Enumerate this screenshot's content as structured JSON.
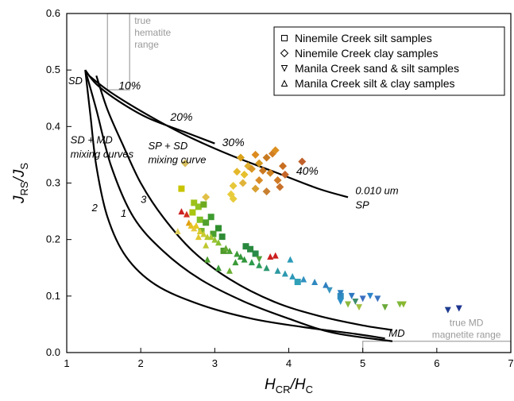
{
  "chart_data": {
    "type": "scatter",
    "xlim": [
      1,
      7
    ],
    "ylim": [
      0,
      0.6
    ],
    "x_ticks": [
      "1",
      "2",
      "3",
      "4",
      "5",
      "6",
      "7"
    ],
    "y_ticks": [
      "0.0",
      "0.1",
      "0.2",
      "0.3",
      "0.4",
      "0.5",
      "0.6"
    ],
    "xlabel": {
      "main": "H",
      "sub1": "CR",
      "slash": "/H",
      "sub2": "C"
    },
    "ylabel": {
      "main": "J",
      "sub1": "RS",
      "slash": "/J",
      "sub2": "S"
    },
    "grid": false,
    "legend_position": "top-right",
    "legend": [
      {
        "marker": "square",
        "label": "Ninemile Creek silt samples"
      },
      {
        "marker": "diamond",
        "label": "Ninemile Creek clay samples"
      },
      {
        "marker": "triangle-down",
        "label": "Manila Creek sand & silt samples"
      },
      {
        "marker": "triangle-up",
        "label": "Manila Creek silt & clay samples"
      }
    ],
    "reference_boxes": [
      {
        "name": "true hematite range",
        "text_lines": [
          "true",
          "hematite",
          "range"
        ],
        "x": [
          1.55,
          1.85
        ],
        "y": [
          0.465,
          0.6
        ]
      },
      {
        "name": "true MD magnetite range",
        "text_lines": [
          "true MD",
          "magnetite range"
        ],
        "x": [
          5.0,
          7.0
        ],
        "y": [
          0.0,
          0.02
        ]
      }
    ],
    "curves": [
      {
        "name": "SD + MD mixing curve 2",
        "label": "2",
        "points": [
          [
            1.25,
            0.5
          ],
          [
            1.32,
            0.42
          ],
          [
            1.4,
            0.33
          ],
          [
            1.55,
            0.24
          ],
          [
            1.8,
            0.17
          ],
          [
            2.2,
            0.12
          ],
          [
            2.8,
            0.085
          ],
          [
            3.5,
            0.06
          ],
          [
            4.2,
            0.045
          ],
          [
            4.9,
            0.033
          ],
          [
            5.3,
            0.025
          ]
        ]
      },
      {
        "name": "SD + MD mixing curve 1",
        "label": "1",
        "points": [
          [
            1.25,
            0.5
          ],
          [
            1.4,
            0.43
          ],
          [
            1.6,
            0.33
          ],
          [
            1.9,
            0.24
          ],
          [
            2.3,
            0.18
          ],
          [
            2.8,
            0.13
          ],
          [
            3.4,
            0.09
          ],
          [
            4.0,
            0.06
          ],
          [
            4.6,
            0.035
          ],
          [
            5.4,
            0.02
          ]
        ]
      },
      {
        "name": "SD + MD mixing curve 3",
        "label": "3",
        "points": [
          [
            1.4,
            0.49
          ],
          [
            1.55,
            0.43
          ],
          [
            1.75,
            0.37
          ],
          [
            2.0,
            0.3
          ],
          [
            2.3,
            0.24
          ],
          [
            2.7,
            0.18
          ],
          [
            3.2,
            0.13
          ],
          [
            3.8,
            0.09
          ],
          [
            4.4,
            0.065
          ],
          [
            5.0,
            0.048
          ],
          [
            5.4,
            0.04
          ]
        ]
      },
      {
        "name": "SP + SD mixing curve",
        "label": "",
        "points": [
          [
            1.25,
            0.5
          ],
          [
            1.4,
            0.475
          ],
          [
            1.7,
            0.445
          ],
          [
            2.1,
            0.415
          ],
          [
            2.6,
            0.39
          ],
          [
            3.0,
            0.37
          ]
        ]
      },
      {
        "name": "0.010 um SP mixing curve",
        "label": "",
        "points": [
          [
            1.3,
            0.49
          ],
          [
            1.6,
            0.46
          ],
          [
            2.1,
            0.42
          ],
          [
            2.6,
            0.385
          ],
          [
            3.2,
            0.35
          ],
          [
            3.8,
            0.32
          ],
          [
            4.4,
            0.29
          ],
          [
            4.8,
            0.275
          ]
        ]
      }
    ],
    "annotations": [
      {
        "text": "SD",
        "x": 1.02,
        "y": 0.475
      },
      {
        "text": "10%",
        "x": 1.7,
        "y": 0.466
      },
      {
        "text": "20%",
        "x": 2.4,
        "y": 0.41
      },
      {
        "text": "30%",
        "x": 3.1,
        "y": 0.365
      },
      {
        "text": "40%",
        "x": 4.1,
        "y": 0.315
      },
      {
        "text": "SD + MD",
        "x": 1.05,
        "y": 0.37
      },
      {
        "text": "mixing curves",
        "x": 1.05,
        "y": 0.345
      },
      {
        "text": "SP + SD",
        "x": 2.1,
        "y": 0.36
      },
      {
        "text": "mixing curve",
        "x": 2.1,
        "y": 0.335
      },
      {
        "text": "0.010 um",
        "x": 4.9,
        "y": 0.28
      },
      {
        "text": "SP",
        "x": 4.9,
        "y": 0.255
      },
      {
        "text": "2",
        "x": 1.34,
        "y": 0.25
      },
      {
        "text": "1",
        "x": 1.73,
        "y": 0.24
      },
      {
        "text": "3",
        "x": 2.0,
        "y": 0.265
      },
      {
        "text": "MD",
        "x": 5.35,
        "y": 0.028
      }
    ],
    "series": [
      {
        "name": "Ninemile Creek silt samples",
        "marker": "square",
        "points": [
          [
            2.55,
            0.29,
            "#c8c400"
          ],
          [
            2.72,
            0.265,
            "#9ec21a"
          ],
          [
            2.78,
            0.258,
            "#8fc21f"
          ],
          [
            2.85,
            0.262,
            "#6eaa20"
          ],
          [
            2.7,
            0.248,
            "#a8c510"
          ],
          [
            2.8,
            0.235,
            "#7fbf24"
          ],
          [
            2.88,
            0.23,
            "#50a02c"
          ],
          [
            2.95,
            0.24,
            "#3d9b30"
          ],
          [
            3.05,
            0.22,
            "#2f8f2e"
          ],
          [
            2.82,
            0.215,
            "#78b42a"
          ],
          [
            2.98,
            0.21,
            "#4aa02e"
          ],
          [
            3.1,
            0.205,
            "#2e8b35"
          ],
          [
            3.42,
            0.188,
            "#27883d"
          ],
          [
            3.48,
            0.183,
            "#2a8a40"
          ],
          [
            3.12,
            0.18,
            "#4e9a2a"
          ],
          [
            3.55,
            0.175,
            "#2a8a48"
          ],
          [
            4.7,
            0.1,
            "#2f8bbf"
          ],
          [
            4.12,
            0.125,
            "#2fa0b8"
          ]
        ]
      },
      {
        "name": "Ninemile Creek clay samples",
        "marker": "diamond",
        "points": [
          [
            3.35,
            0.345,
            "#d9a21a"
          ],
          [
            3.55,
            0.35,
            "#dc8b20"
          ],
          [
            3.7,
            0.345,
            "#c87a20"
          ],
          [
            3.78,
            0.352,
            "#d27e22"
          ],
          [
            3.82,
            0.358,
            "#dd9020"
          ],
          [
            3.6,
            0.335,
            "#d49820"
          ],
          [
            3.45,
            0.33,
            "#e0b030"
          ],
          [
            3.3,
            0.32,
            "#e4b82c"
          ],
          [
            3.4,
            0.315,
            "#e6c02e"
          ],
          [
            3.5,
            0.325,
            "#d89626"
          ],
          [
            3.65,
            0.322,
            "#c97820"
          ],
          [
            3.75,
            0.318,
            "#d08324"
          ],
          [
            3.92,
            0.33,
            "#c86e22"
          ],
          [
            3.95,
            0.315,
            "#c5652a"
          ],
          [
            4.18,
            0.338,
            "#c0602a"
          ],
          [
            3.85,
            0.305,
            "#cf7a25"
          ],
          [
            3.6,
            0.305,
            "#d88a24"
          ],
          [
            3.25,
            0.295,
            "#e6c83a"
          ],
          [
            3.38,
            0.3,
            "#e0b43a"
          ],
          [
            3.22,
            0.28,
            "#e8cc3c"
          ],
          [
            3.25,
            0.272,
            "#e8cc3c"
          ],
          [
            3.55,
            0.29,
            "#d8a030"
          ],
          [
            3.88,
            0.293,
            "#c8702a"
          ],
          [
            3.7,
            0.285,
            "#c88030"
          ],
          [
            2.88,
            0.275,
            "#e0c048"
          ],
          [
            2.6,
            0.335,
            "#d9c060"
          ]
        ]
      },
      {
        "name": "Manila Creek sand & silt samples",
        "marker": "triangle-down",
        "points": [
          [
            3.6,
            0.165,
            "#4ea03a"
          ],
          [
            4.55,
            0.11,
            "#3a96bf"
          ],
          [
            4.7,
            0.105,
            "#2e80c0"
          ],
          [
            4.85,
            0.1,
            "#2e78c0"
          ],
          [
            5.0,
            0.095,
            "#3a6ec0"
          ],
          [
            5.1,
            0.1,
            "#2b84c8"
          ],
          [
            5.2,
            0.095,
            "#3a74c0"
          ],
          [
            4.9,
            0.09,
            "#3c8c6a"
          ],
          [
            5.3,
            0.08,
            "#6aaa3a"
          ],
          [
            5.5,
            0.085,
            "#7fb83a"
          ],
          [
            5.55,
            0.085,
            "#8ab830"
          ],
          [
            4.8,
            0.085,
            "#8ab83c"
          ],
          [
            4.95,
            0.08,
            "#a0c040"
          ],
          [
            6.15,
            0.075,
            "#1e3c90"
          ],
          [
            6.3,
            0.078,
            "#1e3490"
          ],
          [
            4.7,
            0.09,
            "#2c90c8"
          ]
        ]
      },
      {
        "name": "Manila Creek silt & clay samples",
        "marker": "triangle-up",
        "points": [
          [
            2.55,
            0.25,
            "#cc2020"
          ],
          [
            2.62,
            0.245,
            "#d43020"
          ],
          [
            2.65,
            0.23,
            "#e0a010"
          ],
          [
            2.68,
            0.225,
            "#e8c020"
          ],
          [
            2.72,
            0.22,
            "#e8c840"
          ],
          [
            2.75,
            0.225,
            "#e8c820"
          ],
          [
            2.8,
            0.215,
            "#d8cc30"
          ],
          [
            2.85,
            0.21,
            "#c8cc30"
          ],
          [
            2.9,
            0.205,
            "#b8c830"
          ],
          [
            2.95,
            0.205,
            "#a8c830"
          ],
          [
            3.0,
            0.2,
            "#98c430"
          ],
          [
            3.05,
            0.195,
            "#88c030"
          ],
          [
            2.78,
            0.205,
            "#e0c830"
          ],
          [
            2.88,
            0.19,
            "#c0c830"
          ],
          [
            3.15,
            0.185,
            "#60a830"
          ],
          [
            3.2,
            0.18,
            "#4aa030"
          ],
          [
            3.3,
            0.175,
            "#3c9c38"
          ],
          [
            3.35,
            0.17,
            "#34983a"
          ],
          [
            3.4,
            0.165,
            "#30963c"
          ],
          [
            3.28,
            0.16,
            "#3a9a38"
          ],
          [
            3.5,
            0.16,
            "#2c9a4a"
          ],
          [
            3.6,
            0.155,
            "#2e9a58"
          ],
          [
            3.7,
            0.15,
            "#2c9870"
          ],
          [
            3.85,
            0.145,
            "#2c98a0"
          ],
          [
            3.95,
            0.14,
            "#2c9ab0"
          ],
          [
            4.05,
            0.135,
            "#2e98b8"
          ],
          [
            4.2,
            0.13,
            "#2f90c0"
          ],
          [
            4.35,
            0.125,
            "#2f88c0"
          ],
          [
            4.5,
            0.12,
            "#2f80c0"
          ],
          [
            3.2,
            0.145,
            "#6ab030"
          ],
          [
            3.05,
            0.15,
            "#3c9c38"
          ],
          [
            2.9,
            0.165,
            "#50a030"
          ],
          [
            3.75,
            0.17,
            "#cc2020"
          ],
          [
            3.82,
            0.172,
            "#cc2020"
          ],
          [
            4.02,
            0.165,
            "#2c9ab8"
          ],
          [
            2.5,
            0.215,
            "#e0d060"
          ]
        ]
      }
    ]
  }
}
